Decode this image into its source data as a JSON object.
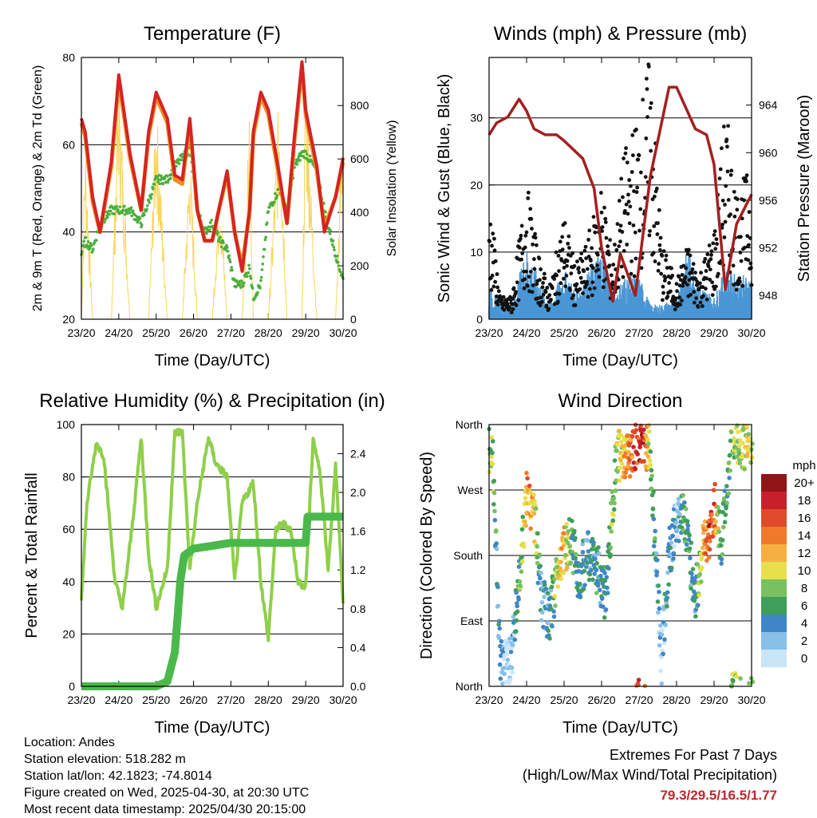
{
  "footer": {
    "location": "Location: Andes",
    "elevation": "Station elevation: 518.282 m",
    "latlon": "Station lat/lon: 42.1823; -74.8014",
    "created": "Figure created on Wed, 2025-04-30, at 20:30 UTC",
    "recent": "Most recent data timestamp: 2025/04/30 20:15:00"
  },
  "extremes": {
    "title": "Extremes For Past 7 Days",
    "subtitle": "(High/Low/Max Wind/Total Precipitation)",
    "values": "79.3/29.5/16.5/1.77"
  },
  "time_ticks": [
    "23/20",
    "24/20",
    "25/20",
    "26/20",
    "27/20",
    "28/20",
    "29/20",
    "30/20"
  ],
  "chart_data": [
    {
      "type": "line",
      "title": "Temperature (F)",
      "xlabel": "Time (Day/UTC)",
      "ylabel": "2m & 9m T (Red, Orange) & 2m Td (Green)",
      "y2label": "Solar Insolation (Yellow)",
      "ylim": [
        20,
        80
      ],
      "y2lim": [
        0,
        980
      ],
      "yticks": [
        "20",
        "40",
        "60",
        "80"
      ],
      "y2ticks": [
        "0",
        "200",
        "400",
        "600",
        "800"
      ],
      "colors": {
        "t2m": "#d42424",
        "t9m": "#f28c1e",
        "td": "#4aae3c",
        "solar": "#f7d65a"
      },
      "x": [
        0,
        0.1,
        0.3,
        0.5,
        0.8,
        1.0,
        1.3,
        1.6,
        1.8,
        2.0,
        2.3,
        2.5,
        2.7,
        2.9,
        3.1,
        3.3,
        3.5,
        3.7,
        3.9,
        4.1,
        4.3,
        4.5,
        4.6,
        4.8,
        5.0,
        5.3,
        5.5,
        5.7,
        5.9,
        6.0,
        6.3,
        6.5,
        6.8,
        7.0
      ],
      "series": [
        {
          "name": "2m T",
          "values": [
            66,
            63,
            48,
            40,
            56,
            76,
            58,
            45,
            63,
            72,
            66,
            53,
            52,
            66,
            45,
            38,
            38,
            46,
            54,
            40,
            31,
            45,
            63,
            72,
            68,
            53,
            42,
            62,
            79,
            68,
            55,
            40,
            48,
            57
          ]
        },
        {
          "name": "9m T",
          "values": [
            65,
            62,
            47,
            40,
            55,
            75,
            57,
            45,
            62,
            71,
            65,
            52,
            51,
            65,
            45,
            38,
            38,
            46,
            53,
            40,
            32,
            45,
            62,
            71,
            67,
            52,
            42,
            61,
            78,
            67,
            54,
            41,
            48,
            56
          ]
        },
        {
          "name": "2m Td",
          "values": [
            35,
            38,
            36,
            42,
            45,
            45,
            45,
            42,
            47,
            52,
            52,
            55,
            57,
            59,
            45,
            40,
            42,
            38,
            36,
            28,
            28,
            32,
            25,
            28,
            45,
            50,
            45,
            55,
            58,
            58,
            54,
            45,
            35,
            29
          ]
        },
        {
          "name": "Solar",
          "values": [
            0,
            700,
            0,
            0,
            0,
            960,
            0,
            0,
            0,
            850,
            0,
            0,
            0,
            650,
            0,
            0,
            0,
            550,
            0,
            0,
            0,
            800,
            0,
            0,
            0,
            900,
            0,
            0,
            0,
            970,
            0,
            0,
            0,
            880
          ]
        }
      ]
    },
    {
      "type": "scatter",
      "title": "Winds (mph) & Pressure (mb)",
      "xlabel": "Time (Day/UTC)",
      "ylabel": "Sonic Wind & Gust (Blue, Black)",
      "y2label": "Station Pressure (Maroon)",
      "ylim": [
        0,
        39
      ],
      "y2lim": [
        946,
        968
      ],
      "yticks": [
        "0",
        "10",
        "20",
        "30"
      ],
      "y2ticks": [
        "948",
        "952",
        "956",
        "960",
        "964"
      ],
      "colors": {
        "wind": "#4a96d4",
        "gust": "#111111",
        "pressure": "#a3201f"
      },
      "pressure": {
        "x": [
          0,
          0.2,
          0.5,
          0.8,
          1.0,
          1.2,
          1.5,
          1.8,
          2.0,
          2.5,
          2.8,
          3.0,
          3.3,
          3.5,
          3.9,
          4.3,
          4.8,
          5.0,
          5.5,
          5.8,
          6.0,
          6.3,
          6.6,
          7.0
        ],
        "values": [
          961.5,
          962.5,
          963.0,
          964.5,
          963.5,
          962.0,
          961.5,
          961.5,
          961.0,
          959.5,
          957.0,
          952.0,
          947.5,
          951.5,
          948.0,
          958.0,
          965.5,
          965.5,
          962.0,
          961.5,
          959.0,
          948.5,
          954.0,
          956.5
        ]
      },
      "wind": {
        "x": [
          0,
          0.3,
          0.6,
          1.0,
          1.3,
          1.6,
          2.0,
          2.3,
          2.6,
          3.0,
          3.3,
          3.6,
          4.0,
          4.3,
          4.6,
          5.0,
          5.3,
          5.6,
          6.0,
          6.3,
          6.6,
          7.0
        ],
        "values": [
          5,
          2,
          2,
          10,
          6,
          2,
          7,
          4,
          6,
          10,
          3,
          6,
          6,
          2,
          2,
          3,
          10,
          5,
          3,
          7,
          6,
          6
        ]
      },
      "gust": {
        "x": [
          0,
          0.3,
          0.6,
          1.0,
          1.3,
          1.6,
          2.0,
          2.3,
          2.6,
          3.0,
          3.3,
          3.6,
          4.0,
          4.3,
          4.6,
          5.0,
          5.3,
          5.6,
          6.0,
          6.3,
          6.6,
          7.0
        ],
        "values": [
          17,
          3,
          3,
          18,
          9,
          4,
          14,
          7,
          10,
          18,
          8,
          22,
          27,
          35,
          10,
          5,
          10,
          6,
          12,
          28,
          17,
          20
        ]
      }
    },
    {
      "type": "line",
      "title": "Relative Humidity (%) & Precipitation (in)",
      "xlabel": "Time (Day/UTC)",
      "ylabel": "Percent & Total Rainfall",
      "ylim": [
        0,
        100
      ],
      "y2lim": [
        0,
        2.7
      ],
      "yticks": [
        "0",
        "20",
        "40",
        "60",
        "80",
        "100"
      ],
      "y2ticks": [
        "0.0",
        "0.4",
        "0.8",
        "1.2",
        "1.6",
        "2.0",
        "2.4"
      ],
      "colors": {
        "rh": "#8fcf4a",
        "precip": "#4bb84b"
      },
      "rh": {
        "x": [
          0,
          0.15,
          0.4,
          0.6,
          0.9,
          1.1,
          1.35,
          1.6,
          1.8,
          2.0,
          2.3,
          2.5,
          2.7,
          2.9,
          3.1,
          3.4,
          3.6,
          3.9,
          4.1,
          4.3,
          4.6,
          4.8,
          5.0,
          5.2,
          5.4,
          5.6,
          5.8,
          6.0,
          6.2,
          6.4,
          6.6,
          6.8,
          7.0
        ],
        "values": [
          33,
          70,
          93,
          88,
          40,
          30,
          60,
          95,
          50,
          30,
          45,
          97,
          97,
          45,
          70,
          95,
          85,
          80,
          40,
          70,
          78,
          40,
          18,
          60,
          62,
          60,
          40,
          38,
          95,
          80,
          45,
          84,
          33
        ]
      },
      "precip": {
        "x": [
          0,
          2.0,
          2.3,
          2.5,
          2.65,
          2.75,
          3.0,
          3.5,
          4.0,
          4.5,
          5.0,
          5.5,
          6.0,
          6.05,
          6.5,
          7.0
        ],
        "values": [
          0.0,
          0.0,
          0.05,
          0.35,
          1.1,
          1.35,
          1.42,
          1.45,
          1.48,
          1.48,
          1.48,
          1.48,
          1.48,
          1.75,
          1.75,
          1.75
        ]
      }
    },
    {
      "type": "scatter",
      "title": "Wind Direction",
      "xlabel": "Time (Day/UTC)",
      "ylabel": "Direction (Colored By Speed)",
      "ylim": [
        0,
        360
      ],
      "yticks": [
        "North",
        "East",
        "South",
        "West",
        "North"
      ],
      "legend_title": "mph",
      "legend_labels": [
        "0",
        "2",
        "4",
        "6",
        "8",
        "10",
        "12",
        "14",
        "16",
        "18",
        "20+"
      ],
      "legend_colors": [
        "#c8e6f8",
        "#88c0e8",
        "#3f86c6",
        "#3f9e5a",
        "#78c060",
        "#e6e04a",
        "#f6b040",
        "#f07a2a",
        "#e04a2a",
        "#c8202a",
        "#901418"
      ],
      "x": [
        0.1,
        0.3,
        0.6,
        0.9,
        1.0,
        1.2,
        1.4,
        1.6,
        1.9,
        2.0,
        2.2,
        2.4,
        2.6,
        2.9,
        3.1,
        3.4,
        3.6,
        3.9,
        4.1,
        4.3,
        4.6,
        4.8,
        5.0,
        5.2,
        5.5,
        5.7,
        5.9,
        6.0,
        6.2,
        6.5,
        6.8,
        7.0
      ],
      "values": [
        320,
        30,
        40,
        200,
        260,
        240,
        120,
        90,
        180,
        190,
        200,
        150,
        180,
        160,
        120,
        320,
        310,
        330,
        340,
        320,
        30,
        180,
        230,
        240,
        120,
        190,
        200,
        250,
        200,
        350,
        330,
        340
      ],
      "speed": [
        8,
        2,
        1,
        9,
        14,
        11,
        3,
        4,
        11,
        12,
        6,
        4,
        4,
        5,
        4,
        10,
        12,
        16,
        18,
        8,
        1,
        5,
        2,
        7,
        4,
        12,
        17,
        15,
        5,
        8,
        9,
        10
      ]
    }
  ]
}
